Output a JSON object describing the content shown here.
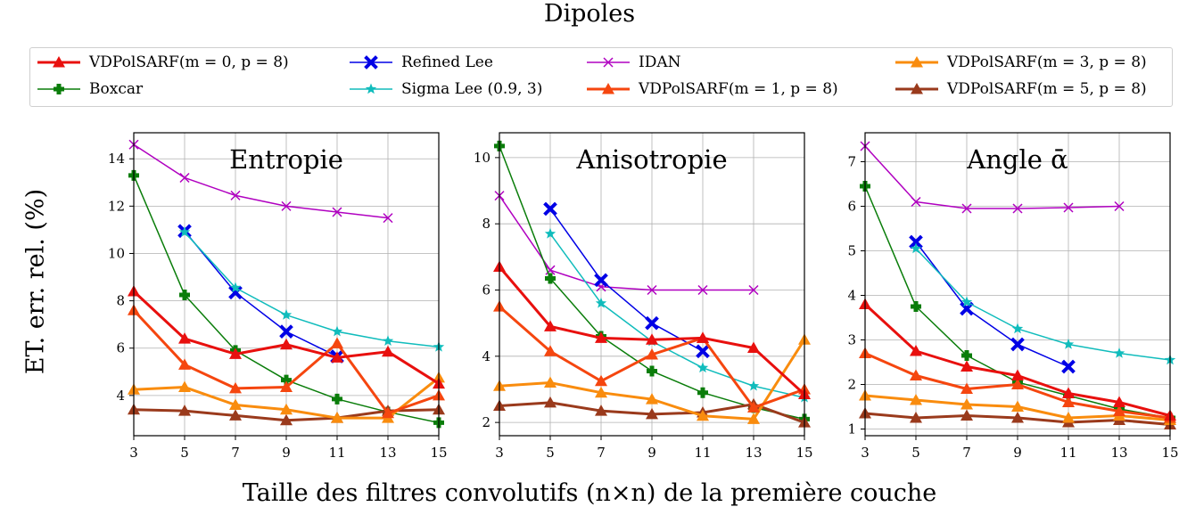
{
  "figure_title": "Dipoles",
  "ylabel": "ET. err. rel. (%)",
  "xlabel": "Taille des filtres convolutifs (n×n) de la première couche",
  "legend": [
    {
      "label": "VDPolSARF(m = 0, p = 8)",
      "color": "#e8100e",
      "marker": "triangle"
    },
    {
      "label": "Boxcar",
      "color": "#0a7d0a",
      "marker": "plus"
    },
    {
      "label": "Refined Lee",
      "color": "#0000e6",
      "marker": "x"
    },
    {
      "label": "Sigma Lee (0.9, 3)",
      "color": "#10bcbc",
      "marker": "star"
    },
    {
      "label": "IDAN",
      "color": "#b000c0",
      "marker": "thinx"
    },
    {
      "label": "VDPolSARF(m = 1, p = 8)",
      "color": "#f5460f",
      "marker": "triangle"
    },
    {
      "label": "VDPolSARF(m = 3, p = 8)",
      "color": "#f98c0e",
      "marker": "triangle"
    },
    {
      "label": "VDPolSARF(m = 5, p = 8)",
      "color": "#9a3a1c",
      "marker": "triangle"
    }
  ],
  "chart_data": [
    {
      "type": "line",
      "title": "Entropie",
      "x": [
        3,
        5,
        7,
        9,
        11,
        13,
        15
      ],
      "xlim": [
        3,
        15
      ],
      "ylim": [
        2.3,
        15.1
      ],
      "yticks": [
        4,
        6,
        8,
        10,
        12,
        14
      ],
      "grid": true,
      "series": [
        {
          "name": "IDAN",
          "values": [
            14.6,
            13.2,
            12.45,
            12.0,
            11.75,
            11.5,
            null
          ]
        },
        {
          "name": "Refined Lee",
          "values": [
            null,
            10.95,
            8.35,
            6.7,
            5.65,
            null,
            null
          ]
        },
        {
          "name": "Sigma Lee (0.9, 3)",
          "values": [
            null,
            10.9,
            8.55,
            7.4,
            6.7,
            6.3,
            6.05
          ]
        },
        {
          "name": "Boxcar",
          "values": [
            13.3,
            8.25,
            5.9,
            4.65,
            3.85,
            3.3,
            2.85
          ]
        },
        {
          "name": "VDPolSARF(m = 0, p = 8)",
          "values": [
            8.4,
            6.4,
            5.75,
            6.15,
            5.6,
            5.85,
            4.5
          ]
        },
        {
          "name": "VDPolSARF(m = 1, p = 8)",
          "values": [
            7.6,
            5.3,
            4.3,
            4.35,
            6.2,
            3.25,
            4.0
          ]
        },
        {
          "name": "VDPolSARF(m = 3, p = 8)",
          "values": [
            4.25,
            4.35,
            3.6,
            3.4,
            3.05,
            3.05,
            4.75
          ]
        },
        {
          "name": "VDPolSARF(m = 5, p = 8)",
          "values": [
            3.4,
            3.35,
            3.15,
            2.95,
            3.05,
            3.35,
            3.4
          ]
        }
      ]
    },
    {
      "type": "line",
      "title": "Anisotropie",
      "x": [
        3,
        5,
        7,
        9,
        11,
        13,
        15
      ],
      "xlim": [
        3,
        15
      ],
      "ylim": [
        1.6,
        10.75
      ],
      "yticks": [
        2,
        4,
        6,
        8,
        10
      ],
      "grid": true,
      "series": [
        {
          "name": "IDAN",
          "values": [
            8.85,
            6.6,
            6.1,
            6.0,
            6.0,
            6.0,
            null
          ]
        },
        {
          "name": "Refined Lee",
          "values": [
            null,
            8.45,
            6.3,
            5.0,
            4.15,
            null,
            null
          ]
        },
        {
          "name": "Sigma Lee (0.9, 3)",
          "values": [
            null,
            7.7,
            5.6,
            4.45,
            3.65,
            3.1,
            2.75
          ]
        },
        {
          "name": "Boxcar",
          "values": [
            10.35,
            6.35,
            4.6,
            3.55,
            2.9,
            2.45,
            2.1
          ]
        },
        {
          "name": "VDPolSARF(m = 0, p = 8)",
          "values": [
            6.7,
            4.9,
            4.55,
            4.5,
            4.55,
            4.25,
            2.85
          ]
        },
        {
          "name": "VDPolSARF(m = 1, p = 8)",
          "values": [
            5.5,
            4.15,
            3.25,
            4.05,
            4.55,
            2.45,
            3.0
          ]
        },
        {
          "name": "VDPolSARF(m = 3, p = 8)",
          "values": [
            3.1,
            3.2,
            2.9,
            2.7,
            2.2,
            2.1,
            4.5
          ]
        },
        {
          "name": "VDPolSARF(m = 5, p = 8)",
          "values": [
            2.5,
            2.6,
            2.35,
            2.25,
            2.3,
            2.55,
            2.0
          ]
        }
      ]
    },
    {
      "type": "line",
      "title": "Angle ᾱ",
      "x": [
        3,
        5,
        7,
        9,
        11,
        13,
        15
      ],
      "xlim": [
        3,
        15
      ],
      "ylim": [
        0.85,
        7.65
      ],
      "yticks": [
        1,
        2,
        3,
        4,
        5,
        6,
        7
      ],
      "grid": true,
      "series": [
        {
          "name": "IDAN",
          "values": [
            7.35,
            6.1,
            5.95,
            5.95,
            5.97,
            6.0,
            null
          ]
        },
        {
          "name": "Refined Lee",
          "values": [
            null,
            5.2,
            3.7,
            2.9,
            2.4,
            null,
            null
          ]
        },
        {
          "name": "Sigma Lee (0.9, 3)",
          "values": [
            null,
            5.05,
            3.85,
            3.25,
            2.9,
            2.7,
            2.55
          ]
        },
        {
          "name": "Boxcar",
          "values": [
            6.45,
            3.75,
            2.65,
            2.05,
            1.75,
            1.45,
            1.25
          ]
        },
        {
          "name": "VDPolSARF(m = 0, p = 8)",
          "values": [
            3.8,
            2.75,
            2.4,
            2.2,
            1.8,
            1.6,
            1.3
          ]
        },
        {
          "name": "VDPolSARF(m = 1, p = 8)",
          "values": [
            2.7,
            2.2,
            1.9,
            2.0,
            1.6,
            1.4,
            1.25
          ]
        },
        {
          "name": "VDPolSARF(m = 3, p = 8)",
          "values": [
            1.75,
            1.65,
            1.55,
            1.5,
            1.25,
            1.3,
            1.2
          ]
        },
        {
          "name": "VDPolSARF(m = 5, p = 8)",
          "values": [
            1.35,
            1.25,
            1.3,
            1.25,
            1.15,
            1.2,
            1.1
          ]
        }
      ]
    }
  ]
}
